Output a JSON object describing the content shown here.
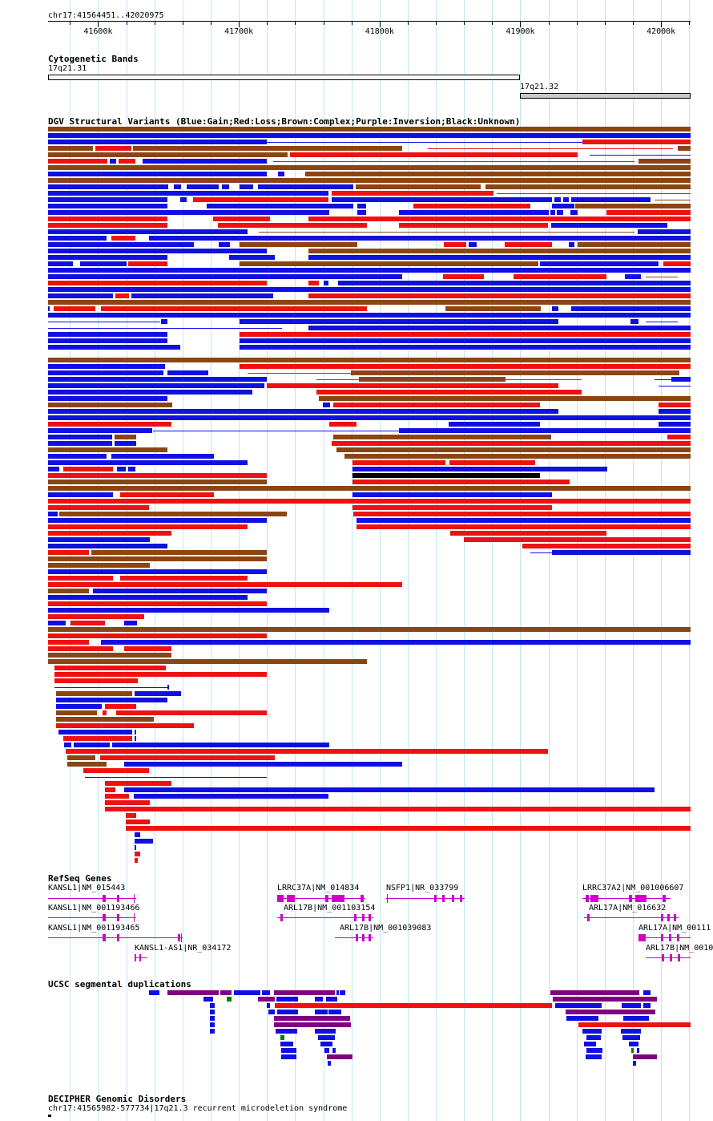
{
  "locus": "chr17:41564451..42020975",
  "ruler": {
    "start": 41564451,
    "end": 42020975,
    "tick_labels": [
      "41600k",
      "41700k",
      "41800k",
      "41900k",
      "42000k"
    ],
    "tick_values": [
      41600000,
      41700000,
      41800000,
      41900000,
      42000000
    ]
  },
  "cytoband": {
    "title": "Cytogenetic Bands",
    "bands": [
      {
        "name": "17q21.31",
        "start": 41564451,
        "end": 41900000,
        "color": "#ffffff"
      },
      {
        "name": "17q21.32",
        "start": 41900000,
        "end": 42020975,
        "color": "#c8c8c8"
      }
    ]
  },
  "dgv": {
    "title": "DGV Structural Variants (Blue:Gain;Red:Loss;Brown:Complex;Purple:Inversion;Black:Unknown)",
    "colors": {
      "gain": "#1010e0",
      "loss": "#ee1111",
      "complex": "#8b4513",
      "inversion": "#800080",
      "unknown": "#000000"
    }
  },
  "refseq": {
    "title": "RefSeq Genes",
    "genes": [
      {
        "label": "KANSL1|NM_015443"
      },
      {
        "label": "KANSL1|NM_001193466"
      },
      {
        "label": "KANSL1|NM_001193465"
      },
      {
        "label": "KANSL1-AS1|NR_034172"
      },
      {
        "label": "LRRC37A|NM_014834"
      },
      {
        "label": "ARL17B|NM_001103154"
      },
      {
        "label": "ARL17B|NM_001039083"
      },
      {
        "label": "NSFP1|NR_033799"
      },
      {
        "label": "LRRC37A2|NM_001006607"
      },
      {
        "label": "ARL17A|NM_016632"
      },
      {
        "label": "ARL17A|NM_00111"
      },
      {
        "label": "ARL17B|NM_0010"
      }
    ]
  },
  "segdup": {
    "title": "UCSC segmental duplications",
    "colors": {
      "high": "#ee1111",
      "mid": "#800080",
      "low": "#1010e0",
      "other": "#008000"
    }
  },
  "decipher": {
    "title": "DECIPHER Genomic Disorders",
    "entry": "chr17:41565982-577734|17q21.3 recurrent microdeletion syndrome"
  }
}
